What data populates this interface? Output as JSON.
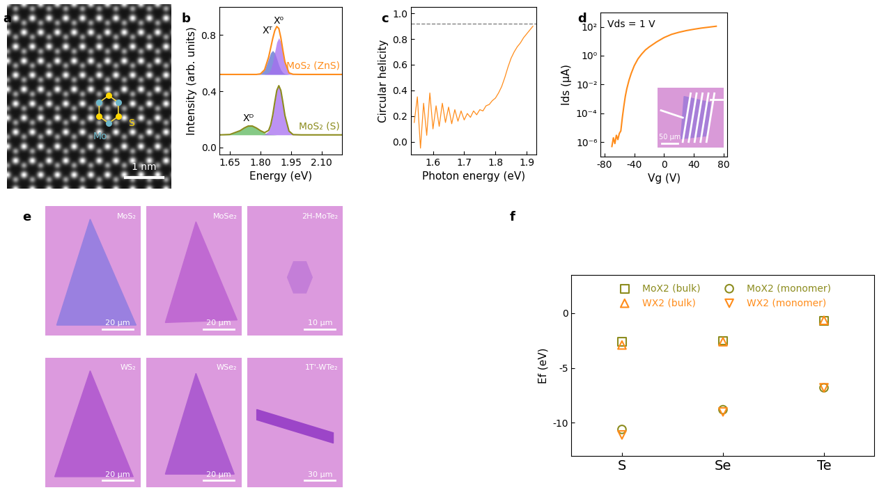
{
  "panel_labels": [
    "a",
    "b",
    "c",
    "d",
    "e",
    "f"
  ],
  "stem_image": {
    "panel": "a",
    "annotations": [
      "Mo",
      "S"
    ],
    "scale_bar": "1 nm"
  },
  "chart_data": [
    {
      "panel": "b",
      "type": "line",
      "x_label": "Energy (eV)",
      "y_label": "Intensity (arb. units)",
      "x": [
        1.6,
        1.65,
        1.7,
        1.72,
        1.74,
        1.76,
        1.78,
        1.8,
        1.82,
        1.84,
        1.85,
        1.86,
        1.87,
        1.88,
        1.89,
        1.9,
        1.91,
        1.92,
        1.94,
        1.96,
        2.0,
        2.05,
        2.1,
        2.15,
        2.2
      ],
      "xlim": [
        1.6,
        2.2
      ],
      "xticks": [
        {
          "value": 1.65,
          "label": "1.65"
        },
        {
          "value": 1.8,
          "label": "1.80"
        },
        {
          "value": 1.95,
          "label": "1.95"
        },
        {
          "value": 2.1,
          "label": "2.10"
        }
      ],
      "ylim": [
        -0.05,
        1.0
      ],
      "yticks": [
        {
          "value": 0.0,
          "label": "0.0"
        },
        {
          "value": 0.4,
          "label": "0.4"
        },
        {
          "value": 0.8,
          "label": "0.8"
        }
      ],
      "series": [
        {
          "name": "MoS₂ (ZnS)",
          "color": "#ff8c1a",
          "values": [
            0.52,
            0.52,
            0.52,
            0.52,
            0.52,
            0.52,
            0.52,
            0.524,
            0.553,
            0.643,
            0.708,
            0.775,
            0.831,
            0.861,
            0.847,
            0.781,
            0.691,
            0.609,
            0.531,
            0.521,
            0.52,
            0.52,
            0.52,
            0.52,
            0.52
          ]
        },
        {
          "name": "MoS₂ (S)",
          "color": "#8c8c1e",
          "values": [
            0.09,
            0.093,
            0.12,
            0.139,
            0.153,
            0.153,
            0.139,
            0.12,
            0.106,
            0.122,
            0.16,
            0.23,
            0.322,
            0.406,
            0.44,
            0.406,
            0.321,
            0.228,
            0.117,
            0.092,
            0.09,
            0.09,
            0.09,
            0.09,
            0.09
          ]
        }
      ],
      "components": [
        {
          "name": "Xᵀ",
          "baseline": 0.52,
          "color": "#5b6fd0",
          "values": [
            0.52,
            0.52,
            0.52,
            0.52,
            0.52,
            0.52,
            0.52,
            0.524,
            0.552,
            0.632,
            0.673,
            0.69,
            0.673,
            0.632,
            0.587,
            0.552,
            0.533,
            0.524,
            0.52,
            0.52,
            0.52,
            0.52,
            0.52,
            0.52,
            0.52
          ]
        },
        {
          "name": "X⁰",
          "baseline": 0.52,
          "color": "#a66ef0",
          "values": [
            0.52,
            0.52,
            0.52,
            0.52,
            0.52,
            0.52,
            0.52,
            0.52,
            0.521,
            0.531,
            0.555,
            0.605,
            0.678,
            0.749,
            0.78,
            0.749,
            0.678,
            0.605,
            0.531,
            0.521,
            0.52,
            0.52,
            0.52,
            0.52,
            0.52
          ]
        },
        {
          "name": "Xᴰ",
          "baseline": 0.09,
          "color": "#5cb85c",
          "values": [
            0.09,
            0.093,
            0.12,
            0.139,
            0.153,
            0.153,
            0.139,
            0.12,
            0.104,
            0.095,
            0.093,
            0.092,
            0.091,
            0.09,
            0.09,
            0.09,
            0.09,
            0.09,
            0.09,
            0.09,
            0.09,
            0.09,
            0.09,
            0.09,
            0.09
          ]
        },
        {
          "baseline": 0.09,
          "color": "#a66ef0",
          "values": [
            0.09,
            0.09,
            0.09,
            0.09,
            0.09,
            0.09,
            0.09,
            0.09,
            0.092,
            0.117,
            0.157,
            0.228,
            0.321,
            0.406,
            0.44,
            0.406,
            0.321,
            0.228,
            0.117,
            0.092,
            0.09,
            0.09,
            0.09,
            0.09,
            0.09
          ]
        }
      ]
    },
    {
      "panel": "c",
      "type": "line",
      "x_label": "Photon energy (eV)",
      "y_label": "Circular helicity",
      "color": "#ff8c1a",
      "x": [
        1.54,
        1.55,
        1.56,
        1.57,
        1.58,
        1.59,
        1.6,
        1.61,
        1.62,
        1.63,
        1.64,
        1.65,
        1.66,
        1.67,
        1.68,
        1.69,
        1.7,
        1.71,
        1.72,
        1.73,
        1.74,
        1.75,
        1.76,
        1.77,
        1.78,
        1.79,
        1.8,
        1.81,
        1.82,
        1.83,
        1.84,
        1.85,
        1.86,
        1.87,
        1.88,
        1.89,
        1.9,
        1.91,
        1.92
      ],
      "values": [
        0.15,
        0.35,
        -0.05,
        0.3,
        0.05,
        0.38,
        0.1,
        0.28,
        0.12,
        0.3,
        0.15,
        0.27,
        0.14,
        0.25,
        0.16,
        0.24,
        0.17,
        0.22,
        0.19,
        0.24,
        0.21,
        0.25,
        0.24,
        0.28,
        0.29,
        0.32,
        0.34,
        0.38,
        0.43,
        0.5,
        0.58,
        0.65,
        0.7,
        0.74,
        0.77,
        0.81,
        0.84,
        0.87,
        0.9
      ],
      "reference_line": 0.92,
      "xlim": [
        1.53,
        1.93
      ],
      "xticks": [
        1.6,
        1.7,
        1.8,
        1.9
      ],
      "ylim": [
        -0.1,
        1.05
      ],
      "yticks": [
        {
          "value": 0.0,
          "label": "0.0"
        },
        {
          "value": 0.2,
          "label": "0.2"
        },
        {
          "value": 0.4,
          "label": "0.4"
        },
        {
          "value": 0.6,
          "label": "0.6"
        },
        {
          "value": 0.8,
          "label": "0.8"
        },
        {
          "value": 1.0,
          "label": "1.0"
        }
      ]
    },
    {
      "panel": "d",
      "type": "line",
      "x_label": "Vg (V)",
      "y_label": "Ids (μA)",
      "annotation": "Vds = 1 V",
      "color": "#ff8c1a",
      "log": "y",
      "x": [
        -70,
        -68,
        -66,
        -64,
        -62,
        -60,
        -58,
        -56,
        -54,
        -52,
        -50,
        -47,
        -44,
        -40,
        -35,
        -30,
        -25,
        -20,
        -10,
        0,
        10,
        20,
        30,
        40,
        50,
        60,
        70
      ],
      "values": [
        5e-07,
        2e-06,
        8e-07,
        3e-06,
        1.5e-06,
        4e-06,
        6e-06,
        5e-05,
        0.0003,
        0.0015,
        0.005,
        0.02,
        0.06,
        0.2,
        0.6,
        1.3,
        2.5,
        4,
        9,
        18,
        30,
        42,
        55,
        68,
        82,
        95,
        110
      ],
      "xlim": [
        -85,
        85
      ],
      "xticks": [
        -80,
        -40,
        0,
        40,
        80
      ],
      "ylim": [
        1e-07,
        1000
      ],
      "yticks": [
        {
          "value": 1e-06,
          "label": "10⁻⁶"
        },
        {
          "value": 0.0001,
          "label": "10⁻⁴"
        },
        {
          "value": 0.01,
          "label": "10⁻²"
        },
        {
          "value": 1,
          "label": "10⁰"
        },
        {
          "value": 100,
          "label": "10²"
        }
      ],
      "inset": {
        "scale_bar": "50 μm"
      }
    },
    {
      "panel": "f",
      "type": "scatter",
      "y_label": "Ef (eV)",
      "legend": "upper center",
      "categories": [
        "S",
        "Se",
        "Te"
      ],
      "ylim": [
        -13,
        3.5
      ],
      "yticks": [
        -10,
        -5,
        0
      ],
      "series": [
        {
          "name": "MoX2 (bulk)",
          "color": "#8c8c1e",
          "marker": "square",
          "values": [
            -2.6,
            -2.5,
            -0.7
          ]
        },
        {
          "name": "WX2 (bulk)",
          "color": "#ff8c1a",
          "marker": "triangle_up",
          "values": [
            -2.9,
            -2.6,
            -0.65
          ]
        },
        {
          "name": "MoX2 (monomer)",
          "color": "#8c8c1e",
          "marker": "circle",
          "values": [
            -10.6,
            -8.8,
            -6.8
          ]
        },
        {
          "name": "WX2 (monomer)",
          "color": "#ff8c1a",
          "marker": "triangle_down",
          "values": [
            -11.1,
            -9.0,
            -6.8
          ]
        }
      ]
    }
  ],
  "optical_images": {
    "panel": "e",
    "images": [
      {
        "label": "MoS₂",
        "scale_bar": "20 μm"
      },
      {
        "label": "MoSe₂",
        "scale_bar": "20 μm"
      },
      {
        "label": "2H-MoTe₂",
        "scale_bar": "10 μm"
      },
      {
        "label": "WS₂",
        "scale_bar": "20 μm"
      },
      {
        "label": "WSe₂",
        "scale_bar": "20 μm"
      },
      {
        "label": "1T'-WTe₂",
        "scale_bar": "30 μm"
      }
    ]
  }
}
